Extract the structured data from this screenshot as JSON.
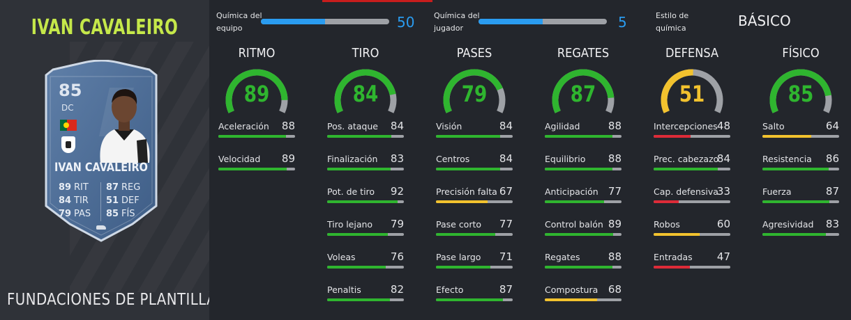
{
  "player": {
    "title": "IVAN CAVALEIRO",
    "squad_name": "FUNDACIONES DE PLANTILLA",
    "card": {
      "rating": "85",
      "position": "DC",
      "name": "IVAN CAVALEIRO",
      "flag": "portugal-flag",
      "club": "fulham-crest",
      "stats": [
        {
          "value": "89",
          "abbr": "RIT"
        },
        {
          "value": "87",
          "abbr": "REG"
        },
        {
          "value": "84",
          "abbr": "TIR"
        },
        {
          "value": "51",
          "abbr": "DEF"
        },
        {
          "value": "79",
          "abbr": "PAS"
        },
        {
          "value": "85",
          "abbr": "FÍS"
        }
      ]
    }
  },
  "chemistry": {
    "team": {
      "label_line1": "Química del",
      "label_line2": "equipo",
      "value": "50",
      "max": 100
    },
    "player": {
      "label_line1": "Química del",
      "label_line2": "jugador",
      "value": "5",
      "max": 10
    },
    "style": {
      "label_line1": "Estilo de",
      "label_line2": "química",
      "value": "BÁSICO"
    }
  },
  "colors": {
    "green": "#2fb52f",
    "yellow": "#f2c22e",
    "red": "#dd2b38",
    "track": "#9ea1a6",
    "blue": "#2a9cf0",
    "accent_title": "#c5e84a"
  },
  "categories": [
    {
      "name": "RITMO",
      "value": "89",
      "color": "green",
      "stats": [
        {
          "label": "Aceleración",
          "value": "88",
          "color": "green"
        },
        {
          "label": "Velocidad",
          "value": "89",
          "color": "green"
        }
      ]
    },
    {
      "name": "TIRO",
      "value": "84",
      "color": "green",
      "stats": [
        {
          "label": "Pos. ataque",
          "value": "84",
          "color": "green"
        },
        {
          "label": "Finalización",
          "value": "83",
          "color": "green"
        },
        {
          "label": "Pot. de tiro",
          "value": "92",
          "color": "green"
        },
        {
          "label": "Tiro lejano",
          "value": "79",
          "color": "green"
        },
        {
          "label": "Voleas",
          "value": "76",
          "color": "green"
        },
        {
          "label": "Penaltis",
          "value": "82",
          "color": "green"
        }
      ]
    },
    {
      "name": "PASES",
      "value": "79",
      "color": "green",
      "stats": [
        {
          "label": "Visión",
          "value": "84",
          "color": "green"
        },
        {
          "label": "Centros",
          "value": "84",
          "color": "green"
        },
        {
          "label": "Precisión falta",
          "value": "67",
          "color": "yellow"
        },
        {
          "label": "Pase corto",
          "value": "77",
          "color": "green"
        },
        {
          "label": "Pase largo",
          "value": "71",
          "color": "green"
        },
        {
          "label": "Efecto",
          "value": "87",
          "color": "green"
        }
      ]
    },
    {
      "name": "REGATES",
      "value": "87",
      "color": "green",
      "stats": [
        {
          "label": "Agilidad",
          "value": "88",
          "color": "green"
        },
        {
          "label": "Equilibrio",
          "value": "88",
          "color": "green"
        },
        {
          "label": "Anticipación",
          "value": "77",
          "color": "green"
        },
        {
          "label": "Control balón",
          "value": "89",
          "color": "green"
        },
        {
          "label": "Regates",
          "value": "88",
          "color": "green"
        },
        {
          "label": "Compostura",
          "value": "68",
          "color": "yellow"
        }
      ]
    },
    {
      "name": "DEFENSA",
      "value": "51",
      "color": "yellow",
      "stats": [
        {
          "label": "Intercepciones",
          "value": "48",
          "color": "red"
        },
        {
          "label": "Prec. cabezazo",
          "value": "84",
          "color": "green"
        },
        {
          "label": "Cap. defensiva",
          "value": "33",
          "color": "red"
        },
        {
          "label": "Robos",
          "value": "60",
          "color": "yellow"
        },
        {
          "label": "Entradas",
          "value": "47",
          "color": "red"
        }
      ]
    },
    {
      "name": "FÍSICO",
      "value": "85",
      "color": "green",
      "stats": [
        {
          "label": "Salto",
          "value": "64",
          "color": "yellow"
        },
        {
          "label": "Resistencia",
          "value": "86",
          "color": "green"
        },
        {
          "label": "Fuerza",
          "value": "87",
          "color": "green"
        },
        {
          "label": "Agresividad",
          "value": "83",
          "color": "green"
        }
      ]
    }
  ]
}
